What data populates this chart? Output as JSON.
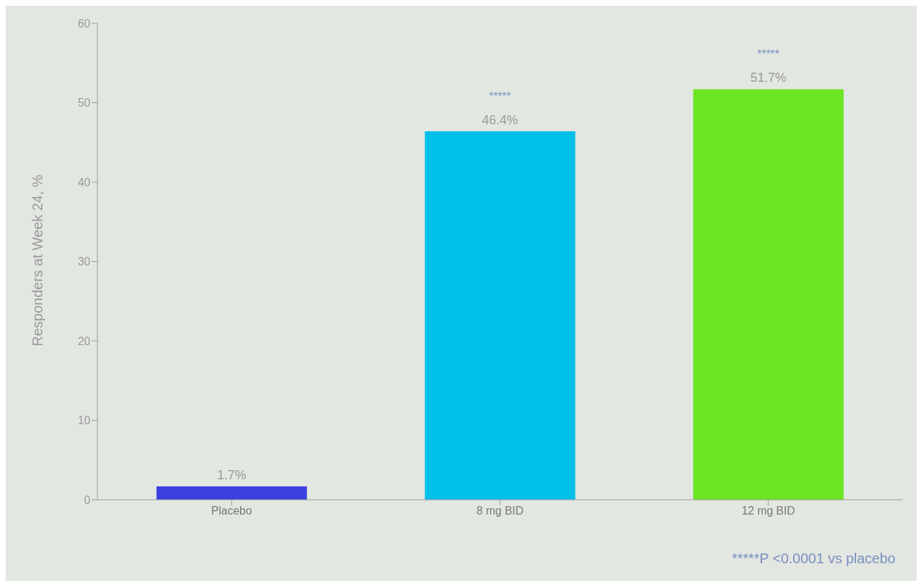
{
  "chart_data": {
    "type": "bar",
    "ylabel": "Responders at Week 24, %",
    "categories": [
      "Placebo",
      "8 mg BID",
      "12 mg BID"
    ],
    "values": [
      1.7,
      46.4,
      51.7
    ],
    "colors": [
      "#3b3fe0",
      "#00c0ea",
      "#6ce622"
    ],
    "value_labels": [
      "1.7%",
      "46.4%",
      "51.7%"
    ],
    "ylim": [
      0,
      60
    ],
    "yticks": [
      0,
      10,
      20,
      30,
      40,
      50,
      60
    ],
    "grid": false,
    "legend": false,
    "annotations": [
      {
        "text": "*****",
        "x": "8 mg BID",
        "y": 46.4
      },
      {
        "text": "*****",
        "x": "12 mg BID",
        "y": 51.7
      },
      "*****P <0.0001 vs placebo"
    ]
  }
}
